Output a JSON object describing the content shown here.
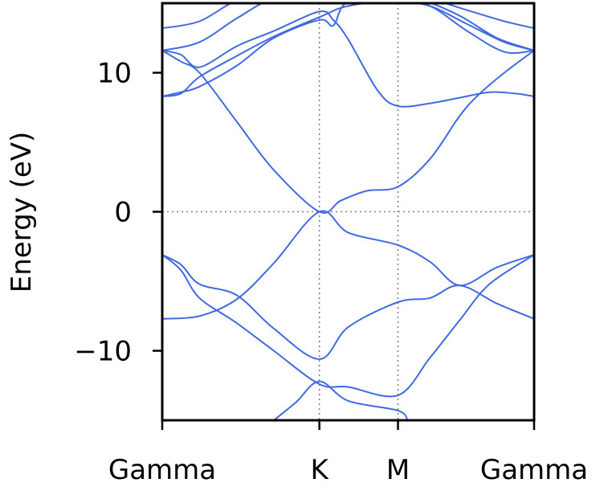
{
  "chart_data": {
    "type": "line",
    "title": "",
    "xlabel": "",
    "ylabel": "Energy (eV)",
    "ylim": [
      -15,
      15
    ],
    "x_ticks": [
      {
        "label": "Gamma",
        "x": 0.0
      },
      {
        "label": "K",
        "x": 0.4226
      },
      {
        "label": "M",
        "x": 0.6339
      },
      {
        "label": "Gamma",
        "x": 1.0
      }
    ],
    "y_ticks": [
      {
        "label": "10",
        "value": 10
      },
      {
        "label": "0",
        "value": 0
      },
      {
        "label": "−10",
        "value": -10
      }
    ],
    "reference_lines": {
      "fermi_level": 0,
      "high_symmetry_points": [
        "K",
        "M"
      ]
    },
    "grid": false,
    "line_color": "#4169e1",
    "series": [
      {
        "x": [
          0.0,
          0.1,
          0.2,
          0.3,
          0.4226,
          0.5,
          0.6339,
          0.72,
          0.82,
          0.92,
          1.0
        ],
        "values": [
          13.2,
          13.7,
          15.2,
          15.8,
          15.8,
          15.7,
          15.6,
          15.3,
          14.5,
          13.7,
          13.2
        ]
      },
      {
        "x": [
          0.0,
          0.1,
          0.2,
          0.3,
          0.4226,
          0.5,
          0.6339,
          0.72,
          0.82,
          0.92,
          1.0
        ],
        "values": [
          11.6,
          12.2,
          13.9,
          15.3,
          15.3,
          15.2,
          15.1,
          14.8,
          13.5,
          12.2,
          11.6
        ]
      },
      {
        "x": [
          0.0,
          0.05,
          0.1,
          0.2,
          0.3,
          0.4226,
          0.46,
          0.5,
          0.58,
          0.6339,
          0.72,
          0.8,
          0.88,
          0.95,
          1.0
        ],
        "values": [
          11.6,
          11.3,
          10.4,
          11.9,
          13.0,
          14.4,
          13.8,
          12.4,
          8.7,
          7.6,
          7.8,
          8.2,
          8.6,
          8.5,
          8.3
        ]
      },
      {
        "x": [
          0.0,
          0.05,
          0.1,
          0.2,
          0.3,
          0.4226,
          0.5,
          0.6339,
          0.72,
          0.82,
          0.92,
          1.0
        ],
        "values": [
          8.3,
          8.5,
          9.7,
          11.2,
          12.6,
          14.0,
          14.8,
          15.2,
          14.8,
          13.0,
          11.5,
          11.6
        ]
      },
      {
        "x": [
          0.0,
          0.05,
          0.1,
          0.2,
          0.3,
          0.4226,
          0.46,
          0.5,
          0.6339,
          0.7,
          0.8,
          0.9,
          1.0
        ],
        "values": [
          8.3,
          8.6,
          9.0,
          10.5,
          12.5,
          13.8,
          13.4,
          15.1,
          15.4,
          15.2,
          14.1,
          12.5,
          11.6
        ]
      },
      {
        "x": [
          0.0,
          0.05,
          0.1,
          0.2,
          0.3,
          0.4226,
          0.48,
          0.55,
          0.6339,
          0.72,
          0.8,
          0.85,
          0.92,
          1.0
        ],
        "values": [
          11.6,
          10.8,
          10.0,
          6.5,
          3.0,
          0.0,
          0.8,
          1.5,
          1.8,
          3.8,
          6.9,
          8.4,
          10.0,
          11.6
        ]
      },
      {
        "x": [
          0.0,
          0.1,
          0.2,
          0.3,
          0.4226,
          0.5,
          0.6339,
          0.72,
          0.8,
          0.9,
          1.0
        ],
        "values": [
          -7.7,
          -7.5,
          -6.3,
          -3.7,
          0.0,
          -1.5,
          -2.4,
          -3.6,
          -5.3,
          -4.0,
          -3.1
        ]
      },
      {
        "x": [
          0.0,
          0.05,
          0.1,
          0.2,
          0.3,
          0.4226,
          0.5,
          0.6339,
          0.72,
          0.8,
          0.9,
          1.0
        ],
        "values": [
          -3.1,
          -3.8,
          -5.2,
          -6.0,
          -8.4,
          -10.6,
          -8.3,
          -6.5,
          -6.2,
          -5.3,
          -6.6,
          -7.7
        ]
      },
      {
        "x": [
          0.0,
          0.05,
          0.1,
          0.2,
          0.3,
          0.4226,
          0.5,
          0.6339,
          0.72,
          0.8,
          0.88,
          1.0
        ],
        "values": [
          -3.1,
          -4.2,
          -6.2,
          -8.0,
          -10.0,
          -12.4,
          -12.6,
          -13.2,
          -10.5,
          -7.8,
          -5.2,
          -3.1
        ]
      },
      {
        "x": [
          0.3,
          0.36,
          0.4226,
          0.5,
          0.6339,
          0.66
        ],
        "values": [
          -15.0,
          -13.7,
          -12.2,
          -13.6,
          -14.3,
          -15.0
        ]
      }
    ]
  }
}
